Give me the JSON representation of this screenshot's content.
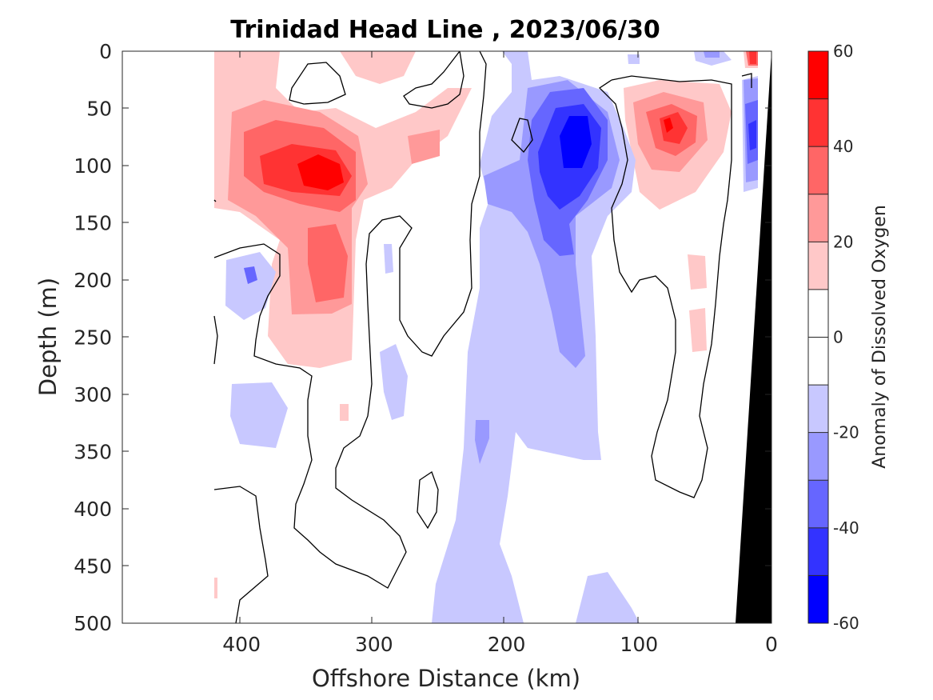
{
  "chart_data": {
    "type": "heatmap",
    "title": "Trinidad Head Line , 2023/06/30",
    "xlabel": "Offshore Distance (km)",
    "ylabel": "Depth (m)",
    "xlim": [
      490,
      0
    ],
    "ylim": [
      0,
      500
    ],
    "x_reversed": true,
    "y_reversed": true,
    "x_ticks": [
      400,
      300,
      200,
      100,
      0
    ],
    "y_ticks": [
      0,
      50,
      100,
      150,
      200,
      250,
      300,
      350,
      400,
      450,
      500
    ],
    "colorbar": {
      "label": "Anomaly of Dissolved Oxygen",
      "range": [
        -60,
        60
      ],
      "step": 10,
      "ticks": [
        60,
        40,
        20,
        0,
        -20,
        -40,
        -60
      ],
      "colors": [
        "#0000ff",
        "#3333ff",
        "#6666ff",
        "#9999ff",
        "#c8c8ff",
        "#ffffff",
        "#ffffff",
        "#ffc8c8",
        "#ff9999",
        "#ff6666",
        "#ff3333",
        "#ff0000"
      ]
    },
    "features": [
      {
        "name": "positive anomaly core",
        "distance_km": 340,
        "depth_m": 105,
        "value": 50
      },
      {
        "name": "positive anomaly",
        "distance_km": 330,
        "depth_m": 200,
        "value": 30
      },
      {
        "name": "negative anomaly core",
        "distance_km": 150,
        "depth_m": 90,
        "value": -50
      },
      {
        "name": "negative anomaly column",
        "distance_km": 200,
        "depth_m": 400,
        "value": -15
      },
      {
        "name": "positive anomaly core",
        "distance_km": 80,
        "depth_m": 65,
        "value": 45
      },
      {
        "name": "negative anomaly",
        "distance_km": 395,
        "depth_m": 200,
        "value": -20
      },
      {
        "name": "nearshore positive anomaly",
        "distance_km": 15,
        "depth_m": 5,
        "value": 45
      },
      {
        "name": "nearshore negative anomaly",
        "distance_km": 12,
        "depth_m": 110,
        "value": -35
      }
    ],
    "data_extent_km": [
      420,
      0
    ],
    "bathymetry_color": "#000000"
  }
}
